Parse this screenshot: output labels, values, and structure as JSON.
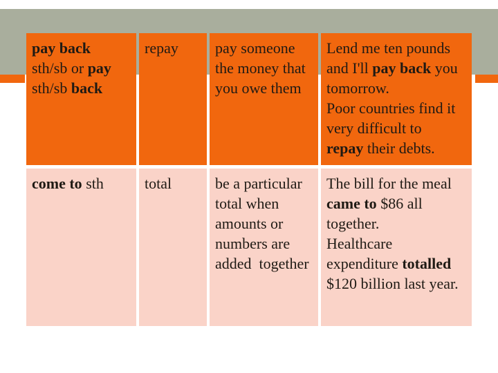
{
  "slide": {
    "colors": {
      "background": "#ffffff",
      "band": "#a9ae9d",
      "accent": "#f1670e",
      "row1_bg": "#f1670e",
      "row2_bg": "#fad3c8",
      "text": "#1f1a14"
    },
    "table": {
      "column_roles": [
        "phrasal-verb",
        "one-word-verb",
        "definition",
        "examples"
      ],
      "rows": [
        {
          "bg": "row1_bg",
          "cells": [
            {
              "segments": [
                {
                  "t": "pay back",
                  "b": true
                },
                {
                  "t": "\nsth/sb or ",
                  "b": false
                },
                {
                  "t": "pay",
                  "b": true
                },
                {
                  "t": "\nsth/sb ",
                  "b": false
                },
                {
                  "t": "back",
                  "b": true
                }
              ]
            },
            {
              "segments": [
                {
                  "t": "repay",
                  "b": false
                }
              ]
            },
            {
              "segments": [
                {
                  "t": "pay someone\nthe money that\nyou owe them",
                  "b": false
                }
              ]
            },
            {
              "segments": [
                {
                  "t": "Lend me ten pounds\nand I'll ",
                  "b": false
                },
                {
                  "t": "pay back",
                  "b": true
                },
                {
                  "t": " you\ntomorrow.\nPoor countries find it\nvery difficult to\n",
                  "b": false
                },
                {
                  "t": "repay",
                  "b": true
                },
                {
                  "t": " their debts.",
                  "b": false
                }
              ]
            }
          ]
        },
        {
          "bg": "row2_bg",
          "cells": [
            {
              "segments": [
                {
                  "t": "come to",
                  "b": true
                },
                {
                  "t": " sth",
                  "b": false
                }
              ]
            },
            {
              "segments": [
                {
                  "t": "total",
                  "b": false
                }
              ]
            },
            {
              "segments": [
                {
                  "t": "be a particular\ntotal when\namounts or\nnumbers are\nadded  together",
                  "b": false
                }
              ]
            },
            {
              "segments": [
                {
                  "t": "The bill for the meal\n",
                  "b": false
                },
                {
                  "t": "came to",
                  "b": true
                },
                {
                  "t": " $86 all\ntogether.\nHealthcare\nexpenditure ",
                  "b": false
                },
                {
                  "t": "totalled",
                  "b": true
                },
                {
                  "t": "\n$120 billion last year.",
                  "b": false
                }
              ]
            }
          ]
        }
      ]
    }
  }
}
